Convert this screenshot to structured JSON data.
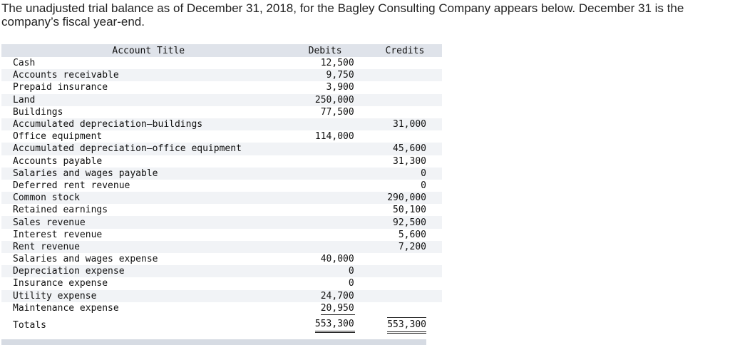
{
  "intro": "The unadjusted trial balance as of December 31, 2018, for the Bagley Consulting Company appears below. December 31 is the company’s fiscal year-end.",
  "headers": {
    "title": "Account Title",
    "debits": "Debits",
    "credits": "Credits"
  },
  "rows": [
    {
      "title": "Cash",
      "debit": "12,500",
      "credit": ""
    },
    {
      "title": "Accounts receivable",
      "debit": "9,750",
      "credit": ""
    },
    {
      "title": "Prepaid insurance",
      "debit": "3,900",
      "credit": ""
    },
    {
      "title": "Land",
      "debit": "250,000",
      "credit": ""
    },
    {
      "title": "Buildings",
      "debit": "77,500",
      "credit": ""
    },
    {
      "title": "Accumulated depreciation–buildings",
      "debit": "",
      "credit": "31,000"
    },
    {
      "title": "Office equipment",
      "debit": "114,000",
      "credit": ""
    },
    {
      "title": "Accumulated depreciation–office equipment",
      "debit": "",
      "credit": "45,600"
    },
    {
      "title": "Accounts payable",
      "debit": "",
      "credit": "31,300"
    },
    {
      "title": "Salaries and wages payable",
      "debit": "",
      "credit": "0"
    },
    {
      "title": "Deferred rent revenue",
      "debit": "",
      "credit": "0"
    },
    {
      "title": "Common stock",
      "debit": "",
      "credit": "290,000"
    },
    {
      "title": "Retained earnings",
      "debit": "",
      "credit": "50,100"
    },
    {
      "title": "Sales revenue",
      "debit": "",
      "credit": "92,500"
    },
    {
      "title": "Interest revenue",
      "debit": "",
      "credit": "5,600"
    },
    {
      "title": "Rent revenue",
      "debit": "",
      "credit": "7,200"
    },
    {
      "title": "Salaries and wages expense",
      "debit": "40,000",
      "credit": ""
    },
    {
      "title": "Depreciation expense",
      "debit": "0",
      "credit": ""
    },
    {
      "title": "Insurance expense",
      "debit": "0",
      "credit": ""
    },
    {
      "title": "Utility expense",
      "debit": "24,700",
      "credit": ""
    },
    {
      "title": "Maintenance expense",
      "debit": "20,950",
      "credit": ""
    }
  ],
  "totals": {
    "label": "Totals",
    "debit": "553,300",
    "credit": "553,300"
  }
}
